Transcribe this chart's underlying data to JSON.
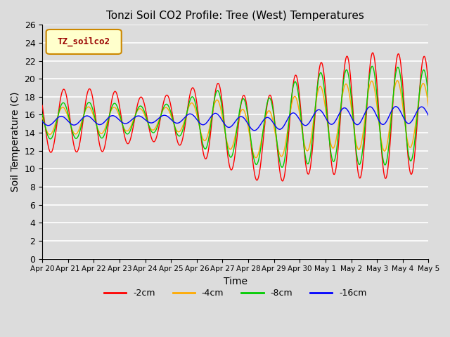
{
  "title": "Tonzi Soil CO2 Profile: Tree (West) Temperatures",
  "xlabel": "Time",
  "ylabel": "Soil Temperature (C)",
  "ylim": [
    0,
    26
  ],
  "yticks": [
    0,
    2,
    4,
    6,
    8,
    10,
    12,
    14,
    16,
    18,
    20,
    22,
    24,
    26
  ],
  "legend_label": "TZ_soilco2",
  "series_labels": [
    "-2cm",
    "-4cm",
    "-8cm",
    "-16cm"
  ],
  "series_colors": [
    "#ff0000",
    "#ffaa00",
    "#00cc00",
    "#0000ff"
  ],
  "background_color": "#dcdcdc",
  "plot_bg_color": "#dcdcdc",
  "n_days": 15,
  "points_per_day": 96,
  "x_tick_labels": [
    "Apr 20",
    "Apr 21",
    "Apr 22",
    "Apr 23",
    "Apr 24",
    "Apr 25",
    "Apr 26",
    "Apr 27",
    "Apr 28",
    "Apr 29",
    "Apr 30",
    "May 1",
    "May 2",
    "May 3",
    "May 4",
    "May 5"
  ]
}
